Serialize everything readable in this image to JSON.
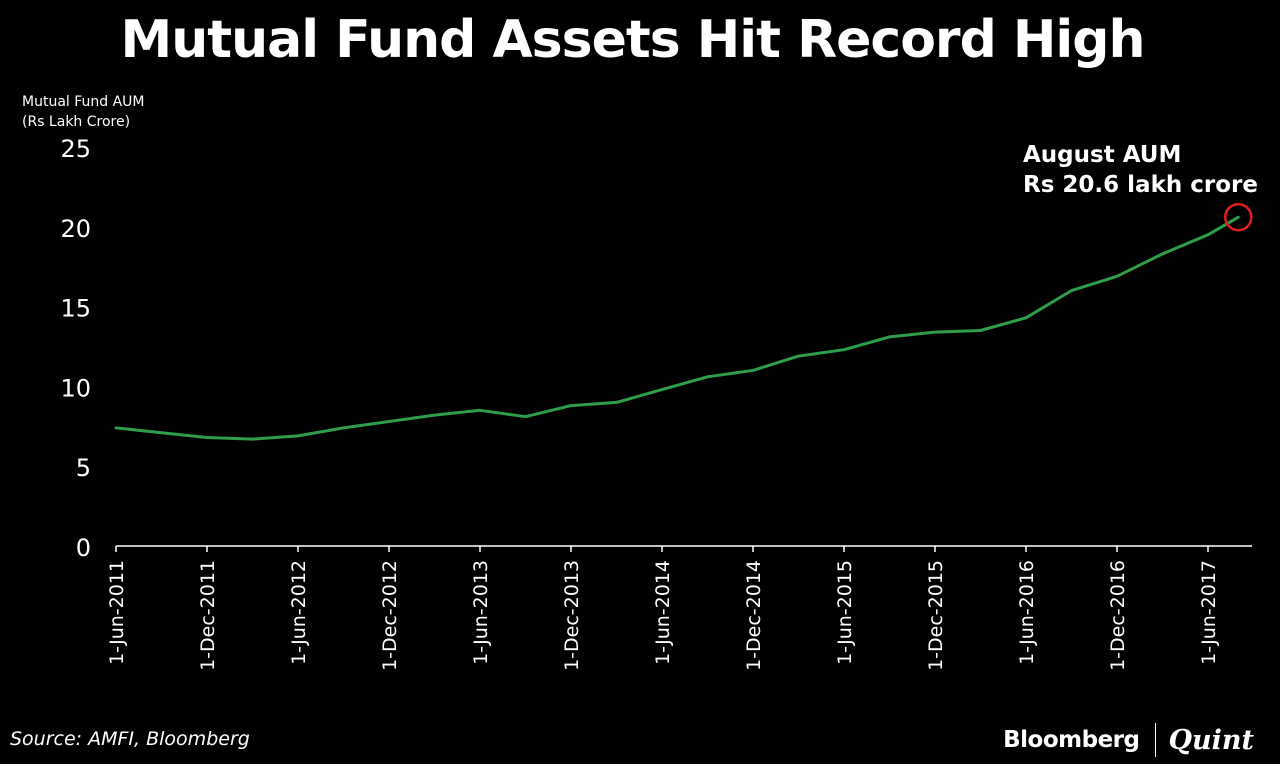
{
  "title": "Mutual Fund Assets Hit Record High",
  "ylabel_line1": "Mutual Fund AUM",
  "ylabel_line2": "(Rs Lakh Crore)",
  "source": "Source: AMFI, Bloomberg",
  "brand": {
    "left": "Bloomberg",
    "right": "Quint"
  },
  "colors": {
    "background": "#000000",
    "line": "#2e9e4a",
    "text": "#ffffff",
    "highlight": "#e02020"
  },
  "chart_data": {
    "type": "line",
    "title": "Mutual Fund Assets Hit Record High",
    "ylabel": "Mutual Fund AUM (Rs Lakh Crore)",
    "xlabel": "",
    "ylim": [
      0,
      25
    ],
    "yticks": [
      0,
      5,
      10,
      15,
      20,
      25
    ],
    "grid": false,
    "x_ticks": [
      "1-Jun-2011",
      "1-Dec-2011",
      "1-Jun-2012",
      "1-Dec-2012",
      "1-Jun-2013",
      "1-Dec-2013",
      "1-Jun-2014",
      "1-Dec-2014",
      "1-Jun-2015",
      "1-Dec-2015",
      "1-Jun-2016",
      "1-Dec-2016",
      "1-Jun-2017"
    ],
    "x_range": [
      "2011-06-01",
      "2017-09-01"
    ],
    "series": [
      {
        "points": [
          [
            "2011-06-01",
            7.4
          ],
          [
            "2011-09-01",
            7.1
          ],
          [
            "2011-12-01",
            6.8
          ],
          [
            "2012-03-01",
            6.7
          ],
          [
            "2012-06-01",
            6.9
          ],
          [
            "2012-09-01",
            7.4
          ],
          [
            "2012-12-01",
            7.8
          ],
          [
            "2013-03-01",
            8.2
          ],
          [
            "2013-06-01",
            8.5
          ],
          [
            "2013-09-01",
            8.1
          ],
          [
            "2013-12-01",
            8.8
          ],
          [
            "2014-03-01",
            9.0
          ],
          [
            "2014-06-01",
            9.8
          ],
          [
            "2014-09-01",
            10.6
          ],
          [
            "2014-12-01",
            11.0
          ],
          [
            "2015-03-01",
            11.9
          ],
          [
            "2015-06-01",
            12.3
          ],
          [
            "2015-09-01",
            13.1
          ],
          [
            "2015-12-01",
            13.4
          ],
          [
            "2016-03-01",
            13.5
          ],
          [
            "2016-06-01",
            14.3
          ],
          [
            "2016-09-01",
            16.0
          ],
          [
            "2016-12-01",
            16.9
          ],
          [
            "2017-03-01",
            18.3
          ],
          [
            "2017-06-01",
            19.5
          ],
          [
            "2017-08-01",
            20.6
          ]
        ]
      }
    ],
    "annotation": {
      "line1": "August AUM",
      "line2": "Rs 20.6 lakh crore",
      "x": "2017-08-01",
      "y": 20.6
    }
  }
}
